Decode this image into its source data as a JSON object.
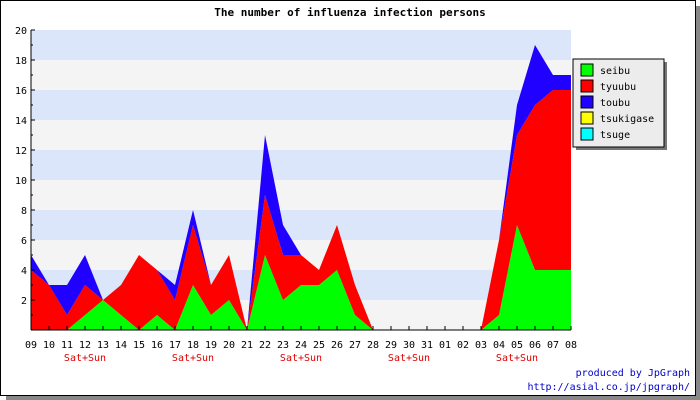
{
  "chart_data": {
    "type": "area",
    "stacked": true,
    "title": "The number of influenza infection persons",
    "xlabel": "",
    "ylabel": "",
    "ylim": [
      0,
      20
    ],
    "yticks": [
      2,
      4,
      6,
      8,
      10,
      12,
      14,
      16,
      18,
      20
    ],
    "x": [
      "09",
      "10",
      "11",
      "12",
      "13",
      "14",
      "15",
      "16",
      "17",
      "18",
      "19",
      "20",
      "21",
      "22",
      "23",
      "24",
      "25",
      "26",
      "27",
      "28",
      "29",
      "30",
      "31",
      "01",
      "02",
      "03",
      "04",
      "05",
      "06",
      "07",
      "08"
    ],
    "weekend_label": "Sat+Sun",
    "weekend_label_under": [
      "12",
      "18",
      "24",
      "30",
      "05"
    ],
    "grid": "horizontal alternating bands",
    "legend_position": "right",
    "series": [
      {
        "name": "seibu",
        "color": "#00ff00",
        "values": [
          0,
          0,
          0,
          1,
          2,
          1,
          0,
          1,
          0,
          3,
          1,
          2,
          0,
          5,
          2,
          3,
          3,
          4,
          1,
          0,
          0,
          0,
          0,
          0,
          0,
          0,
          1,
          7,
          4,
          4,
          4
        ]
      },
      {
        "name": "tyuubu",
        "color": "#ff0000",
        "values": [
          4,
          3,
          1,
          2,
          0,
          2,
          5,
          3,
          2,
          4,
          2,
          3,
          0,
          4,
          3,
          2,
          1,
          3,
          2,
          0,
          0,
          0,
          0,
          0,
          0,
          0,
          5,
          6,
          11,
          12,
          12
        ]
      },
      {
        "name": "toubu",
        "color": "#2000ff",
        "values": [
          1,
          0,
          2,
          2,
          0,
          0,
          0,
          0,
          1,
          1,
          0,
          0,
          0,
          4,
          2,
          0,
          0,
          0,
          0,
          0,
          0,
          0,
          0,
          0,
          0,
          0,
          0,
          2,
          4,
          1,
          1
        ]
      },
      {
        "name": "tsukigase",
        "color": "#ffff00",
        "values": [
          0,
          0,
          0,
          0,
          0,
          0,
          0,
          0,
          0,
          0,
          0,
          0,
          0,
          0,
          0,
          0,
          0,
          0,
          0,
          0,
          0,
          0,
          0,
          0,
          0,
          0,
          0,
          0,
          0,
          0,
          0
        ]
      },
      {
        "name": "tsuge",
        "color": "#00ffff",
        "values": [
          0,
          0,
          0,
          0,
          0,
          0,
          0,
          0,
          0,
          0,
          0,
          0,
          0,
          0,
          0,
          0,
          0,
          0,
          0,
          0,
          0,
          0,
          0,
          0,
          0,
          0,
          0,
          0,
          0,
          0,
          0
        ]
      }
    ]
  },
  "credit": {
    "line1": "produced by JpGraph",
    "line2": "http://asial.co.jp/jpgraph/"
  }
}
